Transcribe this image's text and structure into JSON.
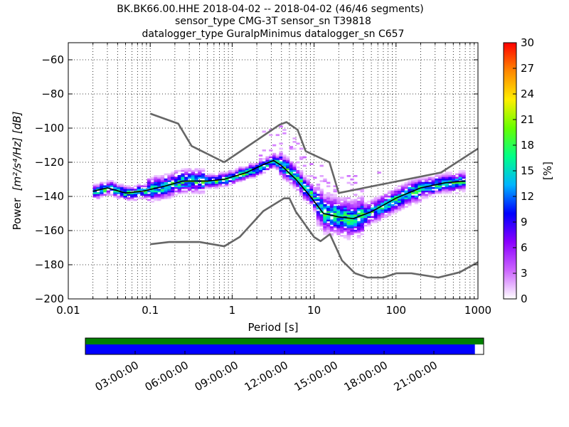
{
  "chart_data": {
    "type": "heatmap",
    "title_lines": [
      "BK.BK66.00.HHE   2018-04-02 -- 2018-04-02  (46/46 segments)",
      "sensor_type CMG-3T sensor_sn T39818",
      "datalogger_type GuralpMinimus datalogger_sn C657"
    ],
    "xlabel": "Period [s]",
    "ylabel_prefix": "Power",
    "ylabel_units": "[m²/s⁴/Hz] [dB]",
    "x_scale": "log",
    "xlim": [
      0.01,
      1000
    ],
    "ylim": [
      -200,
      -50
    ],
    "x_ticks": [
      0.01,
      0.1,
      1,
      10,
      100,
      1000
    ],
    "x_tick_labels": [
      "0.01",
      "0.1",
      "1",
      "10",
      "100",
      "1000"
    ],
    "y_ticks": [
      -200,
      -180,
      -160,
      -140,
      -120,
      -100,
      -80,
      -60
    ],
    "y_tick_labels": [
      "−200",
      "−180",
      "−160",
      "−140",
      "−120",
      "−100",
      "−80",
      "−60"
    ],
    "grid": "dotted",
    "colorbar": {
      "label": "[%]",
      "range": [
        0,
        30
      ],
      "ticks": [
        0,
        3,
        6,
        9,
        12,
        15,
        18,
        21,
        24,
        27,
        30
      ],
      "tick_labels": [
        "0",
        "3",
        "6",
        "9",
        "12",
        "15",
        "18",
        "21",
        "24",
        "27",
        "30"
      ],
      "colormap": [
        "#ffffff",
        "#cc66ff",
        "#8a00ff",
        "#0000ff",
        "#00b4ff",
        "#00ff88",
        "#66ff00",
        "#ffee00",
        "#ff8800",
        "#ff0000"
      ]
    },
    "mode_curve": {
      "color": "#000000",
      "points": [
        [
          0.02,
          -137
        ],
        [
          0.03,
          -135
        ],
        [
          0.05,
          -138
        ],
        [
          0.08,
          -137
        ],
        [
          0.15,
          -134
        ],
        [
          0.25,
          -131
        ],
        [
          0.5,
          -131
        ],
        [
          0.8,
          -130
        ],
        [
          1.5,
          -126
        ],
        [
          2.5,
          -121
        ],
        [
          3.2,
          -119
        ],
        [
          4,
          -122
        ],
        [
          6,
          -130
        ],
        [
          9,
          -140
        ],
        [
          13,
          -150
        ],
        [
          20,
          -152
        ],
        [
          30,
          -153
        ],
        [
          50,
          -149
        ],
        [
          100,
          -141
        ],
        [
          200,
          -135
        ],
        [
          400,
          -132
        ],
        [
          700,
          -131
        ]
      ]
    },
    "psd_density_bands": [
      {
        "x": [
          0.02,
          0.09
        ],
        "y_center": -136,
        "spread": 3
      },
      {
        "x": [
          0.09,
          0.45
        ],
        "y_center": -133,
        "spread": 5
      },
      {
        "x": [
          0.45,
          1.2
        ],
        "y_center": -130,
        "spread": 3
      },
      {
        "x": [
          1.2,
          3.5
        ],
        "y_center": -123,
        "spread": 3
      },
      {
        "x": [
          3.5,
          10
        ],
        "y_center": -131,
        "spread": 5
      },
      {
        "x": [
          10,
          40
        ],
        "y_center": -153,
        "spread": 8
      },
      {
        "x": [
          40,
          200
        ],
        "y_center": -143,
        "spread": 5
      },
      {
        "x": [
          200,
          700
        ],
        "y_center": -132,
        "spread": 4
      }
    ],
    "nhnm": {
      "color": "#666666",
      "points": [
        [
          0.1,
          -91.5
        ],
        [
          0.22,
          -97.4
        ],
        [
          0.32,
          -110.5
        ],
        [
          0.8,
          -120
        ],
        [
          3.8,
          -98
        ],
        [
          4.6,
          -96.5
        ],
        [
          6.3,
          -101
        ],
        [
          7.9,
          -113.5
        ],
        [
          15.4,
          -120
        ],
        [
          20,
          -138
        ],
        [
          354.8,
          -126
        ],
        [
          1000,
          -112
        ]
      ]
    },
    "nlnm": {
      "color": "#666666",
      "points": [
        [
          0.1,
          -168
        ],
        [
          0.17,
          -166.7
        ],
        [
          0.4,
          -166.7
        ],
        [
          0.8,
          -169.2
        ],
        [
          1.24,
          -163.7
        ],
        [
          2.4,
          -148.6
        ],
        [
          4.3,
          -141.1
        ],
        [
          5,
          -141.1
        ],
        [
          6,
          -149
        ],
        [
          10,
          -163.8
        ],
        [
          12,
          -166.2
        ],
        [
          15.6,
          -162.1
        ],
        [
          21.9,
          -177.5
        ],
        [
          31.6,
          -185
        ],
        [
          45,
          -187.5
        ],
        [
          70,
          -187.5
        ],
        [
          101,
          -185
        ],
        [
          154,
          -185
        ],
        [
          328,
          -187.5
        ],
        [
          600,
          -184.4
        ],
        [
          1000,
          -178.5
        ]
      ]
    },
    "timeline": {
      "tick_labels": [
        "03:00:00",
        "06:00:00",
        "09:00:00",
        "12:00:00",
        "15:00:00",
        "18:00:00",
        "21:00:00"
      ],
      "tick_hours": [
        3,
        6,
        9,
        12,
        15,
        18,
        21
      ],
      "range_hours": [
        0,
        24
      ],
      "data_coverage_color": "#008000",
      "psd_coverage_color": "#0000ff",
      "data_coverage_fraction": 1.0,
      "psd_coverage_fraction": 0.978
    }
  }
}
